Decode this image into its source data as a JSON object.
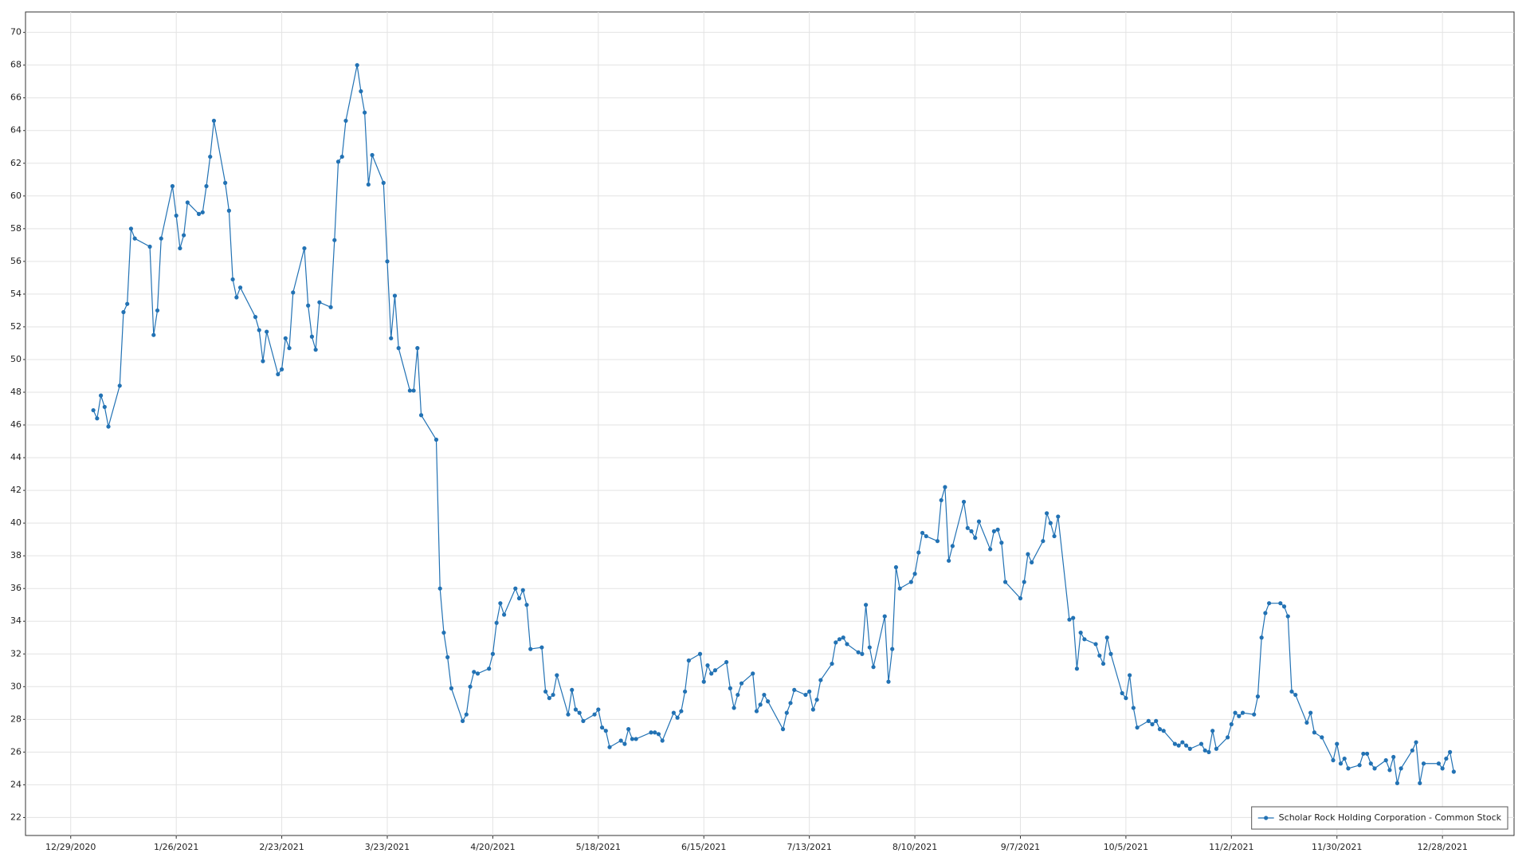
{
  "chart_data": {
    "type": "line",
    "x": [
      "2021-01-04",
      "2021-01-05",
      "2021-01-06",
      "2021-01-07",
      "2021-01-08",
      "2021-01-11",
      "2021-01-12",
      "2021-01-13",
      "2021-01-14",
      "2021-01-15",
      "2021-01-19",
      "2021-01-20",
      "2021-01-21",
      "2021-01-22",
      "2021-01-25",
      "2021-01-26",
      "2021-01-27",
      "2021-01-28",
      "2021-01-29",
      "2021-02-01",
      "2021-02-02",
      "2021-02-03",
      "2021-02-04",
      "2021-02-05",
      "2021-02-08",
      "2021-02-09",
      "2021-02-10",
      "2021-02-11",
      "2021-02-12",
      "2021-02-16",
      "2021-02-17",
      "2021-02-18",
      "2021-02-19",
      "2021-02-22",
      "2021-02-23",
      "2021-02-24",
      "2021-02-25",
      "2021-02-26",
      "2021-03-01",
      "2021-03-02",
      "2021-03-03",
      "2021-03-04",
      "2021-03-05",
      "2021-03-08",
      "2021-03-09",
      "2021-03-10",
      "2021-03-11",
      "2021-03-12",
      "2021-03-15",
      "2021-03-16",
      "2021-03-17",
      "2021-03-18",
      "2021-03-19",
      "2021-03-22",
      "2021-03-23",
      "2021-03-24",
      "2021-03-25",
      "2021-03-26",
      "2021-03-29",
      "2021-03-30",
      "2021-03-31",
      "2021-04-01",
      "2021-04-05",
      "2021-04-06",
      "2021-04-07",
      "2021-04-08",
      "2021-04-09",
      "2021-04-12",
      "2021-04-13",
      "2021-04-14",
      "2021-04-15",
      "2021-04-16",
      "2021-04-19",
      "2021-04-20",
      "2021-04-21",
      "2021-04-22",
      "2021-04-23",
      "2021-04-26",
      "2021-04-27",
      "2021-04-28",
      "2021-04-29",
      "2021-04-30",
      "2021-05-03",
      "2021-05-04",
      "2021-05-05",
      "2021-05-06",
      "2021-05-07",
      "2021-05-10",
      "2021-05-11",
      "2021-05-12",
      "2021-05-13",
      "2021-05-14",
      "2021-05-17",
      "2021-05-18",
      "2021-05-19",
      "2021-05-20",
      "2021-05-21",
      "2021-05-24",
      "2021-05-25",
      "2021-05-26",
      "2021-05-27",
      "2021-05-28",
      "2021-06-01",
      "2021-06-02",
      "2021-06-03",
      "2021-06-04",
      "2021-06-07",
      "2021-06-08",
      "2021-06-09",
      "2021-06-10",
      "2021-06-11",
      "2021-06-14",
      "2021-06-15",
      "2021-06-16",
      "2021-06-17",
      "2021-06-18",
      "2021-06-21",
      "2021-06-22",
      "2021-06-23",
      "2021-06-24",
      "2021-06-25",
      "2021-06-28",
      "2021-06-29",
      "2021-06-30",
      "2021-07-01",
      "2021-07-02",
      "2021-07-06",
      "2021-07-07",
      "2021-07-08",
      "2021-07-09",
      "2021-07-12",
      "2021-07-13",
      "2021-07-14",
      "2021-07-15",
      "2021-07-16",
      "2021-07-19",
      "2021-07-20",
      "2021-07-21",
      "2021-07-22",
      "2021-07-23",
      "2021-07-26",
      "2021-07-27",
      "2021-07-28",
      "2021-07-29",
      "2021-07-30",
      "2021-08-02",
      "2021-08-03",
      "2021-08-04",
      "2021-08-05",
      "2021-08-06",
      "2021-08-09",
      "2021-08-10",
      "2021-08-11",
      "2021-08-12",
      "2021-08-13",
      "2021-08-16",
      "2021-08-17",
      "2021-08-18",
      "2021-08-19",
      "2021-08-20",
      "2021-08-23",
      "2021-08-24",
      "2021-08-25",
      "2021-08-26",
      "2021-08-27",
      "2021-08-30",
      "2021-08-31",
      "2021-09-01",
      "2021-09-02",
      "2021-09-03",
      "2021-09-07",
      "2021-09-08",
      "2021-09-09",
      "2021-09-10",
      "2021-09-13",
      "2021-09-14",
      "2021-09-15",
      "2021-09-16",
      "2021-09-17",
      "2021-09-20",
      "2021-09-21",
      "2021-09-22",
      "2021-09-23",
      "2021-09-24",
      "2021-09-27",
      "2021-09-28",
      "2021-09-29",
      "2021-09-30",
      "2021-10-01",
      "2021-10-04",
      "2021-10-05",
      "2021-10-06",
      "2021-10-07",
      "2021-10-08",
      "2021-10-11",
      "2021-10-12",
      "2021-10-13",
      "2021-10-14",
      "2021-10-15",
      "2021-10-18",
      "2021-10-19",
      "2021-10-20",
      "2021-10-21",
      "2021-10-22",
      "2021-10-25",
      "2021-10-26",
      "2021-10-27",
      "2021-10-28",
      "2021-10-29",
      "2021-11-01",
      "2021-11-02",
      "2021-11-03",
      "2021-11-04",
      "2021-11-05",
      "2021-11-08",
      "2021-11-09",
      "2021-11-10",
      "2021-11-11",
      "2021-11-12",
      "2021-11-15",
      "2021-11-16",
      "2021-11-17",
      "2021-11-18",
      "2021-11-19",
      "2021-11-22",
      "2021-11-23",
      "2021-11-24",
      "2021-11-26",
      "2021-11-29",
      "2021-11-30",
      "2021-12-01",
      "2021-12-02",
      "2021-12-03",
      "2021-12-06",
      "2021-12-07",
      "2021-12-08",
      "2021-12-09",
      "2021-12-10",
      "2021-12-13",
      "2021-12-14",
      "2021-12-15",
      "2021-12-16",
      "2021-12-17",
      "2021-12-20",
      "2021-12-21",
      "2021-12-22",
      "2021-12-23",
      "2021-12-27",
      "2021-12-28",
      "2021-12-29",
      "2021-12-30",
      "2021-12-31"
    ],
    "series": [
      {
        "name": "Scholar Rock Holding Corporation - Common Stock",
        "color": "#2272b4",
        "values": [
          46.9,
          46.4,
          47.8,
          47.1,
          45.9,
          48.4,
          52.9,
          53.4,
          58.0,
          57.4,
          56.9,
          51.5,
          53.0,
          57.4,
          60.6,
          58.8,
          56.8,
          57.6,
          59.6,
          58.9,
          59.0,
          60.6,
          62.4,
          64.6,
          60.8,
          59.1,
          54.9,
          53.8,
          54.4,
          52.6,
          51.8,
          49.9,
          51.7,
          49.1,
          49.4,
          51.3,
          50.7,
          54.1,
          56.8,
          53.3,
          51.4,
          50.6,
          53.5,
          53.2,
          57.3,
          62.1,
          62.4,
          64.6,
          68.0,
          66.4,
          65.1,
          60.7,
          62.5,
          60.8,
          56.0,
          51.3,
          53.9,
          50.7,
          48.1,
          48.1,
          50.7,
          46.6,
          45.1,
          36.0,
          33.3,
          31.8,
          29.9,
          27.9,
          28.3,
          30.0,
          30.9,
          30.8,
          31.1,
          32.0,
          33.9,
          35.1,
          34.4,
          36.0,
          35.4,
          35.9,
          35.0,
          32.3,
          32.4,
          29.7,
          29.3,
          29.5,
          30.7,
          28.3,
          29.8,
          28.6,
          28.4,
          27.9,
          28.3,
          28.6,
          27.5,
          27.3,
          26.3,
          26.7,
          26.5,
          27.4,
          26.8,
          26.8,
          27.2,
          27.2,
          27.1,
          26.7,
          28.4,
          28.1,
          28.5,
          29.7,
          31.6,
          32.0,
          30.3,
          31.3,
          30.8,
          31.0,
          31.5,
          29.9,
          28.7,
          29.5,
          30.2,
          30.8,
          28.5,
          28.9,
          29.5,
          29.1,
          27.4,
          28.4,
          29.0,
          29.8,
          29.5,
          29.7,
          28.6,
          29.2,
          30.4,
          31.4,
          32.7,
          32.9,
          33.0,
          32.6,
          32.1,
          32.0,
          35.0,
          32.4,
          31.2,
          34.3,
          30.3,
          32.3,
          37.3,
          36.0,
          36.4,
          36.9,
          38.2,
          39.4,
          39.2,
          38.9,
          41.4,
          42.2,
          37.7,
          38.6,
          41.3,
          39.7,
          39.5,
          39.1,
          40.1,
          38.4,
          39.5,
          39.6,
          38.8,
          36.4,
          35.4,
          36.4,
          38.1,
          37.6,
          38.9,
          40.6,
          40.0,
          39.2,
          40.4,
          34.1,
          34.2,
          31.1,
          33.3,
          32.9,
          32.6,
          31.9,
          31.4,
          33.0,
          32.0,
          29.6,
          29.3,
          30.7,
          28.7,
          27.5,
          27.9,
          27.7,
          27.9,
          27.4,
          27.3,
          26.5,
          26.4,
          26.6,
          26.4,
          26.2,
          26.5,
          26.1,
          26.0,
          27.3,
          26.2,
          26.9,
          27.7,
          28.4,
          28.2,
          28.4,
          28.3,
          29.4,
          33.0,
          34.5,
          35.1,
          35.1,
          34.9,
          34.3,
          29.7,
          29.5,
          27.8,
          28.4,
          27.2,
          26.9,
          25.5,
          26.5,
          25.3,
          25.6,
          25.0,
          25.2,
          25.9,
          25.9,
          25.3,
          25.0,
          25.5,
          24.9,
          25.7,
          24.1,
          25.0,
          26.1,
          26.6,
          24.1,
          25.3,
          25.3,
          25.0,
          25.6,
          26.0,
          24.8
        ]
      }
    ],
    "xlim": [
      "2020-12-17",
      "2022-01-16"
    ],
    "xticks": [
      {
        "value": "2020-12-29",
        "label": "12/29/2020"
      },
      {
        "value": "2021-01-26",
        "label": "1/26/2021"
      },
      {
        "value": "2021-02-23",
        "label": "2/23/2021"
      },
      {
        "value": "2021-03-23",
        "label": "3/23/2021"
      },
      {
        "value": "2021-04-20",
        "label": "4/20/2021"
      },
      {
        "value": "2021-05-18",
        "label": "5/18/2021"
      },
      {
        "value": "2021-06-15",
        "label": "6/15/2021"
      },
      {
        "value": "2021-07-13",
        "label": "7/13/2021"
      },
      {
        "value": "2021-08-10",
        "label": "8/10/2021"
      },
      {
        "value": "2021-09-07",
        "label": "9/7/2021"
      },
      {
        "value": "2021-10-05",
        "label": "10/5/2021"
      },
      {
        "value": "2021-11-02",
        "label": "11/2/2021"
      },
      {
        "value": "2021-11-30",
        "label": "11/30/2021"
      },
      {
        "value": "2021-12-28",
        "label": "12/28/2021"
      }
    ],
    "ylim": [
      20.9,
      71.25
    ],
    "yticks": [
      22,
      24,
      26,
      28,
      30,
      32,
      34,
      36,
      38,
      40,
      42,
      44,
      46,
      48,
      50,
      52,
      54,
      56,
      58,
      60,
      62,
      64,
      66,
      68,
      70
    ],
    "grid": true,
    "legend": "lower right"
  }
}
